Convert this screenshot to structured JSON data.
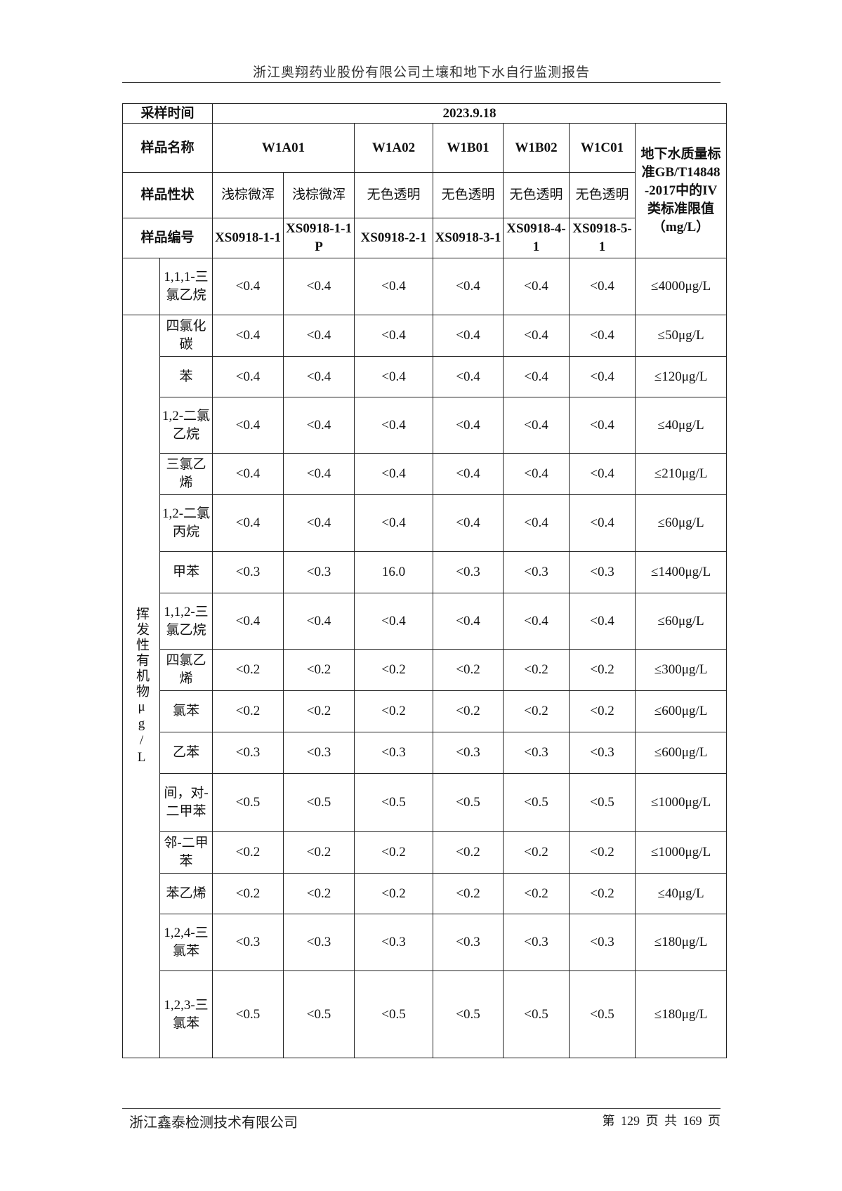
{
  "header": {
    "title": "浙江奥翔药业股份有限公司土壤和地下水自行监测报告"
  },
  "table": {
    "sampling_time_label": "采样时间",
    "sampling_time": "2023.9.18",
    "sample_name_label": "样品名称",
    "sample_names": [
      "W1A01",
      "W1A02",
      "W1B01",
      "W1B02",
      "W1C01"
    ],
    "standard_header": "地下水质量标准GB/T14848-2017中的IV类标准限值（mg/L）",
    "appearance_label": "样品性状",
    "appearances": [
      "浅棕微浑",
      "浅棕微浑",
      "无色透明",
      "无色透明",
      "无色透明",
      "无色透明"
    ],
    "sample_id_label": "样品编号",
    "sample_ids": [
      "XS0918-1-1",
      "XS0918-1-1P",
      "XS0918-2-1",
      "XS0918-3-1",
      "XS0918-4-1",
      "XS0918-5-1"
    ],
    "group_label": "挥发性有机物μg/L",
    "rows": [
      {
        "name": "1,1,1-三氯乙烷",
        "v": [
          "<0.4",
          "<0.4",
          "<0.4",
          "<0.4",
          "<0.4",
          "<0.4"
        ],
        "limit": "≤4000μg/L"
      },
      {
        "name": "四氯化碳",
        "v": [
          "<0.4",
          "<0.4",
          "<0.4",
          "<0.4",
          "<0.4",
          "<0.4"
        ],
        "limit": "≤50μg/L"
      },
      {
        "name": "苯",
        "v": [
          "<0.4",
          "<0.4",
          "<0.4",
          "<0.4",
          "<0.4",
          "<0.4"
        ],
        "limit": "≤120μg/L"
      },
      {
        "name": "1,2-二氯乙烷",
        "v": [
          "<0.4",
          "<0.4",
          "<0.4",
          "<0.4",
          "<0.4",
          "<0.4"
        ],
        "limit": "≤40μg/L"
      },
      {
        "name": "三氯乙烯",
        "v": [
          "<0.4",
          "<0.4",
          "<0.4",
          "<0.4",
          "<0.4",
          "<0.4"
        ],
        "limit": "≤210μg/L"
      },
      {
        "name": "1,2-二氯丙烷",
        "v": [
          "<0.4",
          "<0.4",
          "<0.4",
          "<0.4",
          "<0.4",
          "<0.4"
        ],
        "limit": "≤60μg/L"
      },
      {
        "name": "甲苯",
        "v": [
          "<0.3",
          "<0.3",
          "16.0",
          "<0.3",
          "<0.3",
          "<0.3"
        ],
        "limit": "≤1400μg/L"
      },
      {
        "name": "1,1,2-三氯乙烷",
        "v": [
          "<0.4",
          "<0.4",
          "<0.4",
          "<0.4",
          "<0.4",
          "<0.4"
        ],
        "limit": "≤60μg/L"
      },
      {
        "name": "四氯乙烯",
        "v": [
          "<0.2",
          "<0.2",
          "<0.2",
          "<0.2",
          "<0.2",
          "<0.2"
        ],
        "limit": "≤300μg/L"
      },
      {
        "name": "氯苯",
        "v": [
          "<0.2",
          "<0.2",
          "<0.2",
          "<0.2",
          "<0.2",
          "<0.2"
        ],
        "limit": "≤600μg/L"
      },
      {
        "name": "乙苯",
        "v": [
          "<0.3",
          "<0.3",
          "<0.3",
          "<0.3",
          "<0.3",
          "<0.3"
        ],
        "limit": "≤600μg/L"
      },
      {
        "name": "间，对-二甲苯",
        "v": [
          "<0.5",
          "<0.5",
          "<0.5",
          "<0.5",
          "<0.5",
          "<0.5"
        ],
        "limit": "≤1000μg/L"
      },
      {
        "name": "邻-二甲苯",
        "v": [
          "<0.2",
          "<0.2",
          "<0.2",
          "<0.2",
          "<0.2",
          "<0.2"
        ],
        "limit": "≤1000μg/L"
      },
      {
        "name": "苯乙烯",
        "v": [
          "<0.2",
          "<0.2",
          "<0.2",
          "<0.2",
          "<0.2",
          "<0.2"
        ],
        "limit": "≤40μg/L"
      },
      {
        "name": "1,2,4-三氯苯",
        "v": [
          "<0.3",
          "<0.3",
          "<0.3",
          "<0.3",
          "<0.3",
          "<0.3"
        ],
        "limit": "≤180μg/L"
      },
      {
        "name": "1,2,3-三氯苯",
        "v": [
          "<0.5",
          "<0.5",
          "<0.5",
          "<0.5",
          "<0.5",
          "<0.5"
        ],
        "limit": "≤180μg/L"
      }
    ]
  },
  "footer": {
    "company": "浙江鑫泰检测技术有限公司",
    "page": "第 129 页 共 169 页"
  }
}
